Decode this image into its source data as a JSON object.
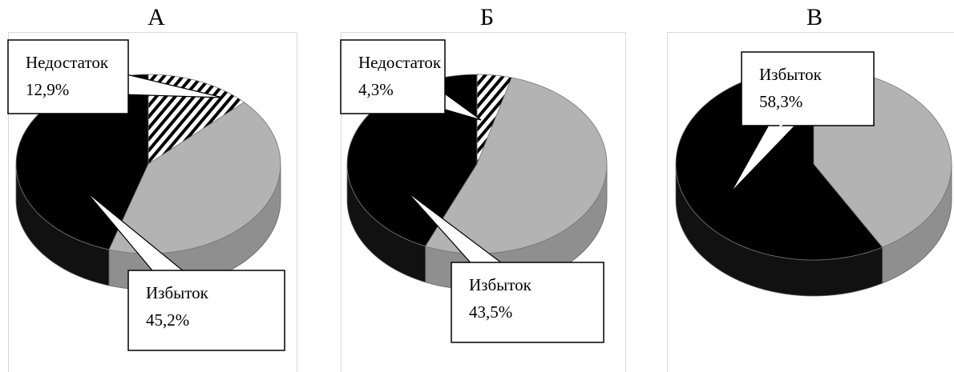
{
  "chart_data": [
    {
      "type": "pie",
      "title": "А",
      "categories": [
        "Недостаток",
        null,
        "Избыток"
      ],
      "values": [
        12.9,
        41.9,
        45.2
      ],
      "value_labels": [
        "12,9%",
        null,
        "45,2%"
      ],
      "colors": [
        "hatch",
        "#b3b3b3",
        "#000000"
      ]
    },
    {
      "type": "pie",
      "title": "Б",
      "categories": [
        "Недостаток",
        null,
        "Избыток"
      ],
      "values": [
        4.3,
        52.2,
        43.5
      ],
      "value_labels": [
        "4,3%",
        null,
        "43,5%"
      ],
      "colors": [
        "hatch",
        "#b3b3b3",
        "#000000"
      ]
    },
    {
      "type": "pie",
      "title": "В",
      "categories": [
        null,
        "Избыток"
      ],
      "values": [
        41.7,
        58.3
      ],
      "value_labels": [
        null,
        "58,3%"
      ],
      "colors": [
        "#b3b3b3",
        "#000000"
      ]
    }
  ]
}
